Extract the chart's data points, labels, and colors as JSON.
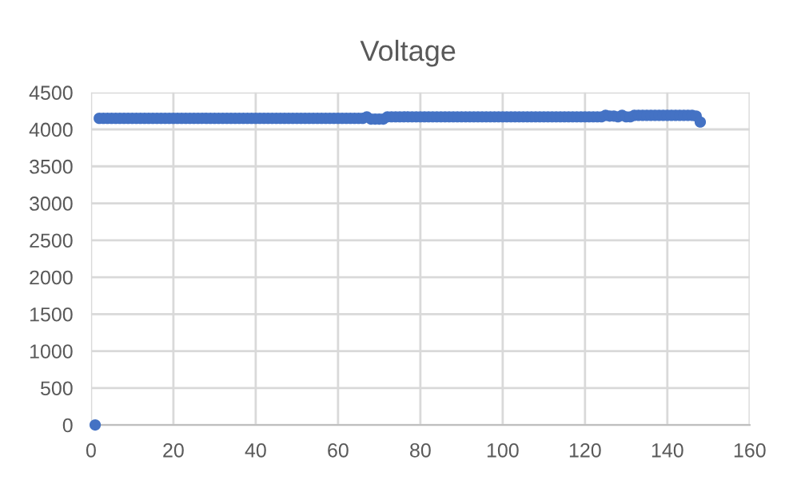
{
  "chart_data": {
    "type": "scatter",
    "title": "Voltage",
    "x": [
      1,
      2,
      3,
      4,
      5,
      6,
      7,
      8,
      9,
      10,
      11,
      12,
      13,
      14,
      15,
      16,
      17,
      18,
      19,
      20,
      21,
      22,
      23,
      24,
      25,
      26,
      27,
      28,
      29,
      30,
      31,
      32,
      33,
      34,
      35,
      36,
      37,
      38,
      39,
      40,
      41,
      42,
      43,
      44,
      45,
      46,
      47,
      48,
      49,
      50,
      51,
      52,
      53,
      54,
      55,
      56,
      57,
      58,
      59,
      60,
      61,
      62,
      63,
      64,
      65,
      66,
      67,
      68,
      69,
      70,
      71,
      72,
      73,
      74,
      75,
      76,
      77,
      78,
      79,
      80,
      81,
      82,
      83,
      84,
      85,
      86,
      87,
      88,
      89,
      90,
      91,
      92,
      93,
      94,
      95,
      96,
      97,
      98,
      99,
      100,
      101,
      102,
      103,
      104,
      105,
      106,
      107,
      108,
      109,
      110,
      111,
      112,
      113,
      114,
      115,
      116,
      117,
      118,
      119,
      120,
      121,
      122,
      123,
      124,
      125,
      126,
      127,
      128,
      129,
      130,
      131,
      132,
      133,
      134,
      135,
      136,
      137,
      138,
      139,
      140,
      141,
      142,
      143,
      144,
      145,
      146,
      147,
      148
    ],
    "series": [
      {
        "color": "#4472c4",
        "values": [
          0,
          4150,
          4150,
          4150,
          4150,
          4150,
          4150,
          4150,
          4150,
          4150,
          4150,
          4150,
          4150,
          4150,
          4150,
          4150,
          4150,
          4150,
          4150,
          4150,
          4150,
          4150,
          4150,
          4150,
          4150,
          4150,
          4150,
          4150,
          4150,
          4150,
          4150,
          4150,
          4150,
          4150,
          4150,
          4150,
          4150,
          4150,
          4150,
          4150,
          4150,
          4150,
          4150,
          4150,
          4150,
          4150,
          4150,
          4150,
          4150,
          4150,
          4150,
          4150,
          4150,
          4150,
          4150,
          4150,
          4150,
          4150,
          4150,
          4150,
          4150,
          4150,
          4150,
          4150,
          4150,
          4150,
          4170,
          4140,
          4140,
          4140,
          4140,
          4170,
          4170,
          4170,
          4170,
          4170,
          4170,
          4170,
          4170,
          4170,
          4170,
          4170,
          4170,
          4170,
          4170,
          4170,
          4170,
          4170,
          4170,
          4170,
          4170,
          4170,
          4170,
          4170,
          4170,
          4170,
          4170,
          4170,
          4170,
          4170,
          4170,
          4170,
          4170,
          4170,
          4170,
          4170,
          4170,
          4170,
          4170,
          4170,
          4170,
          4170,
          4170,
          4170,
          4170,
          4170,
          4170,
          4170,
          4170,
          4170,
          4170,
          4170,
          4170,
          4170,
          4190,
          4180,
          4180,
          4170,
          4190,
          4170,
          4170,
          4190,
          4190,
          4190,
          4190,
          4190,
          4190,
          4190,
          4190,
          4190,
          4190,
          4190,
          4190,
          4190,
          4190,
          4190,
          4180,
          4100
        ]
      }
    ],
    "xlim": [
      0,
      160
    ],
    "xticks": [
      0,
      20,
      40,
      60,
      80,
      100,
      120,
      140,
      160
    ],
    "ylim": [
      0,
      4500
    ],
    "yticks": [
      0,
      500,
      1000,
      1500,
      2000,
      2500,
      3000,
      3500,
      4000,
      4500
    ],
    "grid": true,
    "marker": "circle"
  }
}
